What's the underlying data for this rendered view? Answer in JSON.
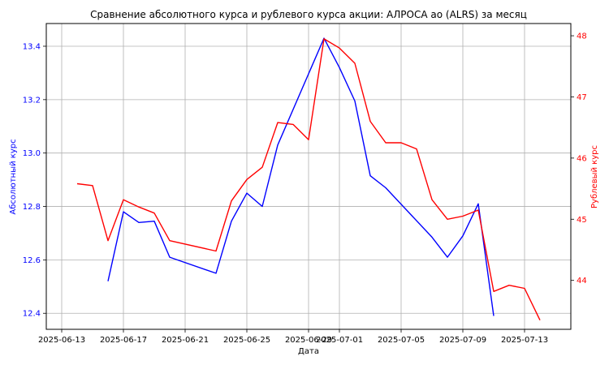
{
  "chart_data": {
    "type": "line",
    "title": "Сравнение абсолютного курса и рублевого курса акции: АЛРОСА ао (ALRS) за месяц",
    "xlabel": "Дата",
    "ylabel_left": "Абсолютный курс",
    "ylabel_right": "Рублевый курс",
    "grid": true,
    "colors": {
      "absolute": "#0000ff",
      "ruble": "#ff0000",
      "left_axis": "#0000ff",
      "right_axis": "#ff0000"
    },
    "xlim": [
      "2025-06-12",
      "2025-07-16"
    ],
    "x_ticks": [
      "2025-06-13",
      "2025-06-17",
      "2025-06-21",
      "2025-06-25",
      "2025-06-29",
      "2025-07-01",
      "2025-07-05",
      "2025-07-09",
      "2025-07-13"
    ],
    "ylim_left": [
      12.34,
      13.485
    ],
    "y_ticks_left": [
      12.4,
      12.6,
      12.8,
      13.0,
      13.2,
      13.4
    ],
    "ylim_right": [
      43.2,
      48.2
    ],
    "y_ticks_right": [
      44,
      45,
      46,
      47,
      48
    ],
    "series": [
      {
        "axis": "left",
        "x": [
          "2025-06-16",
          "2025-06-17",
          "2025-06-18",
          "2025-06-19",
          "2025-06-20",
          "2025-06-23",
          "2025-06-24",
          "2025-06-25",
          "2025-06-26",
          "2025-06-27",
          "2025-06-30",
          "2025-07-01",
          "2025-07-02",
          "2025-07-03",
          "2025-07-04",
          "2025-07-07",
          "2025-07-08",
          "2025-07-09",
          "2025-07-10",
          "2025-07-11"
        ],
        "values": [
          12.52,
          12.78,
          12.74,
          12.745,
          12.61,
          12.55,
          12.745,
          12.85,
          12.8,
          13.03,
          13.43,
          13.32,
          13.195,
          12.915,
          12.87,
          12.685,
          12.61,
          12.69,
          12.81,
          12.39
        ]
      },
      {
        "axis": "right",
        "x": [
          "2025-06-14",
          "2025-06-15",
          "2025-06-16",
          "2025-06-17",
          "2025-06-18",
          "2025-06-19",
          "2025-06-20",
          "2025-06-23",
          "2025-06-24",
          "2025-06-25",
          "2025-06-26",
          "2025-06-27",
          "2025-06-28",
          "2025-06-29",
          "2025-06-30",
          "2025-07-01",
          "2025-07-02",
          "2025-07-03",
          "2025-07-04",
          "2025-07-05",
          "2025-07-06",
          "2025-07-07",
          "2025-07-08",
          "2025-07-09",
          "2025-07-10",
          "2025-07-11",
          "2025-07-12",
          "2025-07-13",
          "2025-07-14"
        ],
        "values": [
          45.58,
          45.55,
          44.65,
          45.32,
          45.2,
          45.1,
          44.65,
          44.48,
          45.3,
          45.65,
          45.85,
          46.58,
          46.55,
          46.3,
          47.95,
          47.8,
          47.55,
          46.6,
          46.25,
          46.25,
          46.15,
          45.32,
          45.0,
          45.05,
          45.15,
          43.82,
          43.92,
          43.87,
          43.35
        ]
      }
    ]
  }
}
